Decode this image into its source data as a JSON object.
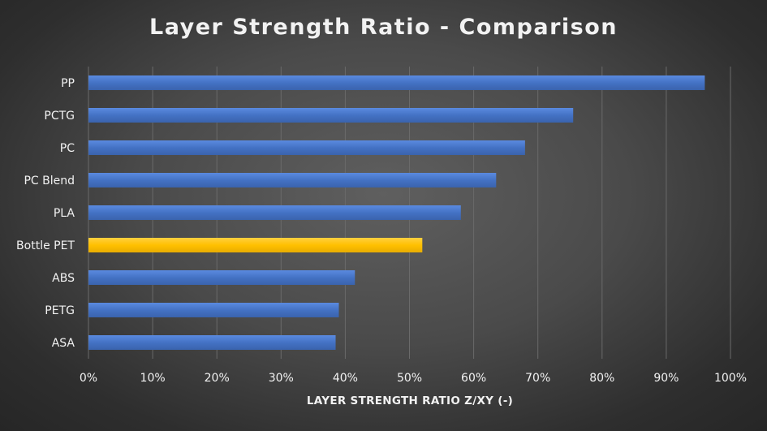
{
  "chart_data": {
    "type": "bar",
    "orientation": "horizontal",
    "title": "Layer Strength Ratio - Comparison",
    "xlabel": "LAYER STRENGTH RATIO Z/XY (-)",
    "ylabel": "",
    "xlim": [
      0,
      100
    ],
    "x_ticks": [
      "0%",
      "10%",
      "20%",
      "30%",
      "40%",
      "50%",
      "60%",
      "70%",
      "80%",
      "90%",
      "100%"
    ],
    "categories": [
      "PP",
      "PCTG",
      "PC",
      "PC Blend",
      "PLA",
      "Bottle PET",
      "ABS",
      "PETG",
      "ASA"
    ],
    "values": [
      96,
      75.5,
      68,
      63.5,
      58,
      52,
      41.5,
      39,
      38.5
    ],
    "grid": "vertical",
    "legend": "none",
    "colors": {
      "default_bar": "#4472C4",
      "highlight_bar": "#FFC000",
      "highlight_category": "Bottle PET",
      "gridline": "#6a6a6a",
      "text": "#f2f2f2"
    }
  }
}
